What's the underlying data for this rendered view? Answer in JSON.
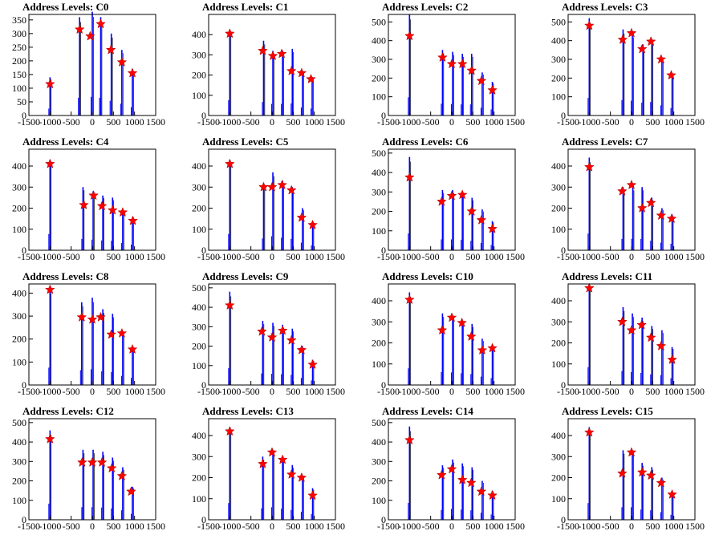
{
  "figure": {
    "columns": 4,
    "rows": 4
  },
  "colors": {
    "spike": "#0000ff",
    "spike_top": "#000000",
    "marker": "#ff0000",
    "frame": "#000000"
  },
  "chart_data": [
    {
      "type": "bar",
      "title": "Address Levels: C0",
      "xlim": [
        -1500,
        1500
      ],
      "ylim": [
        0,
        370
      ],
      "xticks": [
        "-1500",
        "-1000",
        "-500",
        "0",
        "500",
        "1000",
        "1500"
      ],
      "yticks": [
        "0",
        "50",
        "100",
        "150",
        "200",
        "250",
        "300",
        "350"
      ],
      "peaks_x": [
        -1000,
        -300,
        0,
        200,
        450,
        700,
        950
      ],
      "spike_heights": [
        140,
        360,
        380,
        360,
        300,
        240,
        170
      ],
      "markers_x": [
        -1000,
        -300,
        -50,
        200,
        440,
        700,
        950
      ],
      "markers_y": [
        115,
        315,
        290,
        335,
        240,
        195,
        155
      ]
    },
    {
      "type": "bar",
      "title": "Address Levels: C1",
      "xlim": [
        -1500,
        1500
      ],
      "ylim": [
        0,
        500
      ],
      "xticks": [
        "-1500",
        "-1000",
        "-500",
        "0",
        "500",
        "1000",
        "1500"
      ],
      "yticks": [
        "0",
        "100",
        "200",
        "300",
        "400"
      ],
      "peaks_x": [
        -1000,
        -200,
        20,
        250,
        480,
        720,
        950
      ],
      "spike_heights": [
        420,
        370,
        320,
        320,
        330,
        220,
        190
      ],
      "markers_x": [
        -1000,
        -220,
        20,
        230,
        460,
        700,
        920
      ],
      "markers_y": [
        405,
        320,
        295,
        305,
        220,
        210,
        180
      ]
    },
    {
      "type": "bar",
      "title": "Address Levels: C2",
      "xlim": [
        -1500,
        1500
      ],
      "ylim": [
        0,
        540
      ],
      "xticks": [
        "-1500",
        "-1000",
        "-500",
        "0",
        "500",
        "1000",
        "1500"
      ],
      "yticks": [
        "0",
        "100",
        "200",
        "300",
        "400",
        "500"
      ],
      "peaks_x": [
        -1000,
        -220,
        20,
        250,
        470,
        720,
        960
      ],
      "spike_heights": [
        540,
        350,
        340,
        330,
        330,
        230,
        180
      ],
      "markers_x": [
        -1000,
        -220,
        0,
        250,
        470,
        700,
        960
      ],
      "markers_y": [
        425,
        310,
        275,
        275,
        240,
        185,
        135
      ]
    },
    {
      "type": "bar",
      "title": "Address Levels: C3",
      "xlim": [
        -1500,
        1500
      ],
      "ylim": [
        0,
        540
      ],
      "xticks": [
        "-1500",
        "-1000",
        "-500",
        "0",
        "500",
        "1000",
        "1500"
      ],
      "yticks": [
        "0",
        "100",
        "200",
        "300",
        "400",
        "500"
      ],
      "peaks_x": [
        -1000,
        -200,
        20,
        270,
        480,
        720,
        960
      ],
      "spike_heights": [
        520,
        460,
        440,
        380,
        400,
        300,
        220
      ],
      "markers_x": [
        -1000,
        -210,
        0,
        250,
        460,
        700,
        940
      ],
      "markers_y": [
        480,
        405,
        440,
        355,
        395,
        300,
        215
      ]
    },
    {
      "type": "bar",
      "title": "Address Levels: C4",
      "xlim": [
        -1500,
        1500
      ],
      "ylim": [
        0,
        480
      ],
      "xticks": [
        "-1500",
        "-1000",
        "-500",
        "0",
        "500",
        "1000",
        "1500"
      ],
      "yticks": [
        "0",
        "100",
        "200",
        "300",
        "400"
      ],
      "peaks_x": [
        -1000,
        -220,
        20,
        250,
        480,
        720,
        950
      ],
      "spike_heights": [
        430,
        300,
        280,
        260,
        250,
        190,
        150
      ],
      "markers_x": [
        -1000,
        -200,
        30,
        230,
        480,
        720,
        960
      ],
      "markers_y": [
        410,
        215,
        260,
        210,
        190,
        180,
        140
      ]
    },
    {
      "type": "bar",
      "title": "Address Levels: C5",
      "xlim": [
        -1500,
        1500
      ],
      "ylim": [
        0,
        480
      ],
      "xticks": [
        "-1500",
        "-1000",
        "-500",
        "0",
        "500",
        "1000",
        "1500"
      ],
      "yticks": [
        "0",
        "100",
        "200",
        "300",
        "400"
      ],
      "peaks_x": [
        -1000,
        -200,
        20,
        250,
        480,
        720,
        960
      ],
      "spike_heights": [
        430,
        310,
        370,
        330,
        300,
        200,
        130
      ],
      "markers_x": [
        -1000,
        -200,
        0,
        240,
        460,
        700,
        960
      ],
      "markers_y": [
        410,
        300,
        300,
        310,
        285,
        155,
        120
      ]
    },
    {
      "type": "bar",
      "title": "Address Levels: C6",
      "xlim": [
        -1500,
        1500
      ],
      "ylim": [
        0,
        520
      ],
      "xticks": [
        "-1500",
        "-1000",
        "-500",
        "0",
        "500",
        "1000",
        "1500"
      ],
      "yticks": [
        "0",
        "100",
        "200",
        "300",
        "400",
        "500"
      ],
      "peaks_x": [
        -1000,
        -220,
        20,
        250,
        480,
        720,
        960
      ],
      "spike_heights": [
        480,
        310,
        310,
        300,
        270,
        210,
        150
      ],
      "markers_x": [
        -1000,
        -240,
        0,
        250,
        470,
        700,
        960
      ],
      "markers_y": [
        375,
        250,
        280,
        285,
        200,
        155,
        110
      ]
    },
    {
      "type": "bar",
      "title": "Address Levels: C7",
      "xlim": [
        -1500,
        1500
      ],
      "ylim": [
        0,
        480
      ],
      "xticks": [
        "-1500",
        "-1000",
        "-500",
        "0",
        "500",
        "1000",
        "1500"
      ],
      "yticks": [
        "0",
        "100",
        "200",
        "300",
        "400"
      ],
      "peaks_x": [
        -1000,
        -200,
        30,
        250,
        480,
        720,
        960
      ],
      "spike_heights": [
        440,
        300,
        300,
        300,
        250,
        200,
        170
      ],
      "markers_x": [
        -1000,
        -220,
        0,
        250,
        460,
        700,
        950
      ],
      "markers_y": [
        395,
        280,
        310,
        200,
        225,
        165,
        150
      ]
    },
    {
      "type": "bar",
      "title": "Address Levels: C8",
      "xlim": [
        -1500,
        1500
      ],
      "ylim": [
        0,
        440
      ],
      "xticks": [
        "-1500",
        "-1000",
        "-500",
        "0",
        "500",
        "1000",
        "1500"
      ],
      "yticks": [
        "0",
        "100",
        "200",
        "300",
        "400"
      ],
      "peaks_x": [
        -1000,
        -250,
        0,
        250,
        480,
        720,
        950
      ],
      "spike_heights": [
        420,
        360,
        380,
        330,
        310,
        220,
        170
      ],
      "markers_x": [
        -1000,
        -250,
        0,
        200,
        450,
        700,
        950
      ],
      "markers_y": [
        415,
        295,
        285,
        295,
        220,
        225,
        155
      ]
    },
    {
      "type": "bar",
      "title": "Address Levels: C9",
      "xlim": [
        -1500,
        1500
      ],
      "ylim": [
        0,
        520
      ],
      "xticks": [
        "-1500",
        "-1000",
        "-500",
        "0",
        "500",
        "1000",
        "1500"
      ],
      "yticks": [
        "0",
        "100",
        "200",
        "300",
        "400",
        "500"
      ],
      "peaks_x": [
        -1000,
        -220,
        20,
        250,
        480,
        720,
        960
      ],
      "spike_heights": [
        480,
        330,
        320,
        310,
        290,
        200,
        130
      ],
      "markers_x": [
        -1000,
        -240,
        0,
        250,
        460,
        700,
        960
      ],
      "markers_y": [
        410,
        275,
        245,
        280,
        230,
        180,
        105
      ]
    },
    {
      "type": "bar",
      "title": "Address Levels: C10",
      "xlim": [
        -1500,
        1500
      ],
      "ylim": [
        0,
        480
      ],
      "xticks": [
        "-1500",
        "-1000",
        "-500",
        "0",
        "500",
        "1000",
        "1500"
      ],
      "yticks": [
        "0",
        "100",
        "200",
        "300",
        "400"
      ],
      "peaks_x": [
        -1000,
        -220,
        20,
        250,
        480,
        720,
        960
      ],
      "spike_heights": [
        440,
        340,
        330,
        310,
        290,
        220,
        180
      ],
      "markers_x": [
        -1000,
        -230,
        0,
        240,
        460,
        720,
        960
      ],
      "markers_y": [
        405,
        260,
        320,
        295,
        230,
        165,
        175
      ]
    },
    {
      "type": "bar",
      "title": "Address Levels: C11",
      "xlim": [
        -1500,
        1500
      ],
      "ylim": [
        0,
        480
      ],
      "xticks": [
        "-1500",
        "-1000",
        "-500",
        "0",
        "500",
        "1000",
        "1500"
      ],
      "yticks": [
        "0",
        "100",
        "200",
        "300",
        "400"
      ],
      "peaks_x": [
        -1000,
        -200,
        20,
        250,
        480,
        720,
        960
      ],
      "spike_heights": [
        470,
        370,
        340,
        320,
        280,
        260,
        180
      ],
      "markers_x": [
        -1000,
        -220,
        0,
        240,
        460,
        700,
        960
      ],
      "markers_y": [
        460,
        300,
        260,
        285,
        225,
        185,
        120
      ]
    },
    {
      "type": "bar",
      "title": "Address Levels: C12",
      "xlim": [
        -1500,
        1500
      ],
      "ylim": [
        0,
        520
      ],
      "xticks": [
        "-1500",
        "-1000",
        "-500",
        "0",
        "500",
        "1000",
        "1500"
      ],
      "yticks": [
        "0",
        "100",
        "200",
        "300",
        "400",
        "500"
      ],
      "peaks_x": [
        -1000,
        -220,
        20,
        250,
        480,
        720,
        950
      ],
      "spike_heights": [
        460,
        360,
        360,
        350,
        320,
        270,
        170
      ],
      "markers_x": [
        -1000,
        -240,
        0,
        230,
        460,
        700,
        920
      ],
      "markers_y": [
        415,
        295,
        295,
        295,
        265,
        225,
        145
      ]
    },
    {
      "type": "bar",
      "title": "Address Levels: C13",
      "xlim": [
        -1500,
        1500
      ],
      "ylim": [
        0,
        480
      ],
      "xticks": [
        "-1500",
        "-1000",
        "-500",
        "0",
        "500",
        "1000",
        "1500"
      ],
      "yticks": [
        "0",
        "100",
        "200",
        "300",
        "400"
      ],
      "peaks_x": [
        -1000,
        -220,
        20,
        250,
        480,
        720,
        960
      ],
      "spike_heights": [
        440,
        300,
        330,
        290,
        260,
        210,
        150
      ],
      "markers_x": [
        -1000,
        -220,
        0,
        250,
        460,
        700,
        960
      ],
      "markers_y": [
        420,
        265,
        320,
        285,
        215,
        200,
        115
      ]
    },
    {
      "type": "bar",
      "title": "Address Levels: C14",
      "xlim": [
        -1500,
        1500
      ],
      "ylim": [
        0,
        520
      ],
      "xticks": [
        "-1500",
        "-1000",
        "-500",
        "0",
        "500",
        "1000",
        "1500"
      ],
      "yticks": [
        "0",
        "100",
        "200",
        "300",
        "400",
        "500"
      ],
      "peaks_x": [
        -1000,
        -220,
        20,
        250,
        480,
        720,
        960
      ],
      "spike_heights": [
        480,
        280,
        310,
        290,
        270,
        200,
        150
      ],
      "markers_x": [
        -1000,
        -240,
        0,
        250,
        460,
        700,
        960
      ],
      "markers_y": [
        410,
        230,
        260,
        205,
        190,
        145,
        125
      ]
    },
    {
      "type": "bar",
      "title": "Address Levels: C15",
      "xlim": [
        -1500,
        1500
      ],
      "ylim": [
        0,
        480
      ],
      "xticks": [
        "-1500",
        "-1000",
        "-500",
        "0",
        "500",
        "1000",
        "1500"
      ],
      "yticks": [
        "0",
        "100",
        "200",
        "300",
        "400"
      ],
      "peaks_x": [
        -1000,
        -200,
        20,
        250,
        480,
        720,
        960
      ],
      "spike_heights": [
        440,
        330,
        330,
        270,
        250,
        200,
        130
      ],
      "markers_x": [
        -1000,
        -220,
        0,
        250,
        460,
        700,
        960
      ],
      "markers_y": [
        415,
        220,
        320,
        225,
        210,
        175,
        120
      ]
    }
  ]
}
